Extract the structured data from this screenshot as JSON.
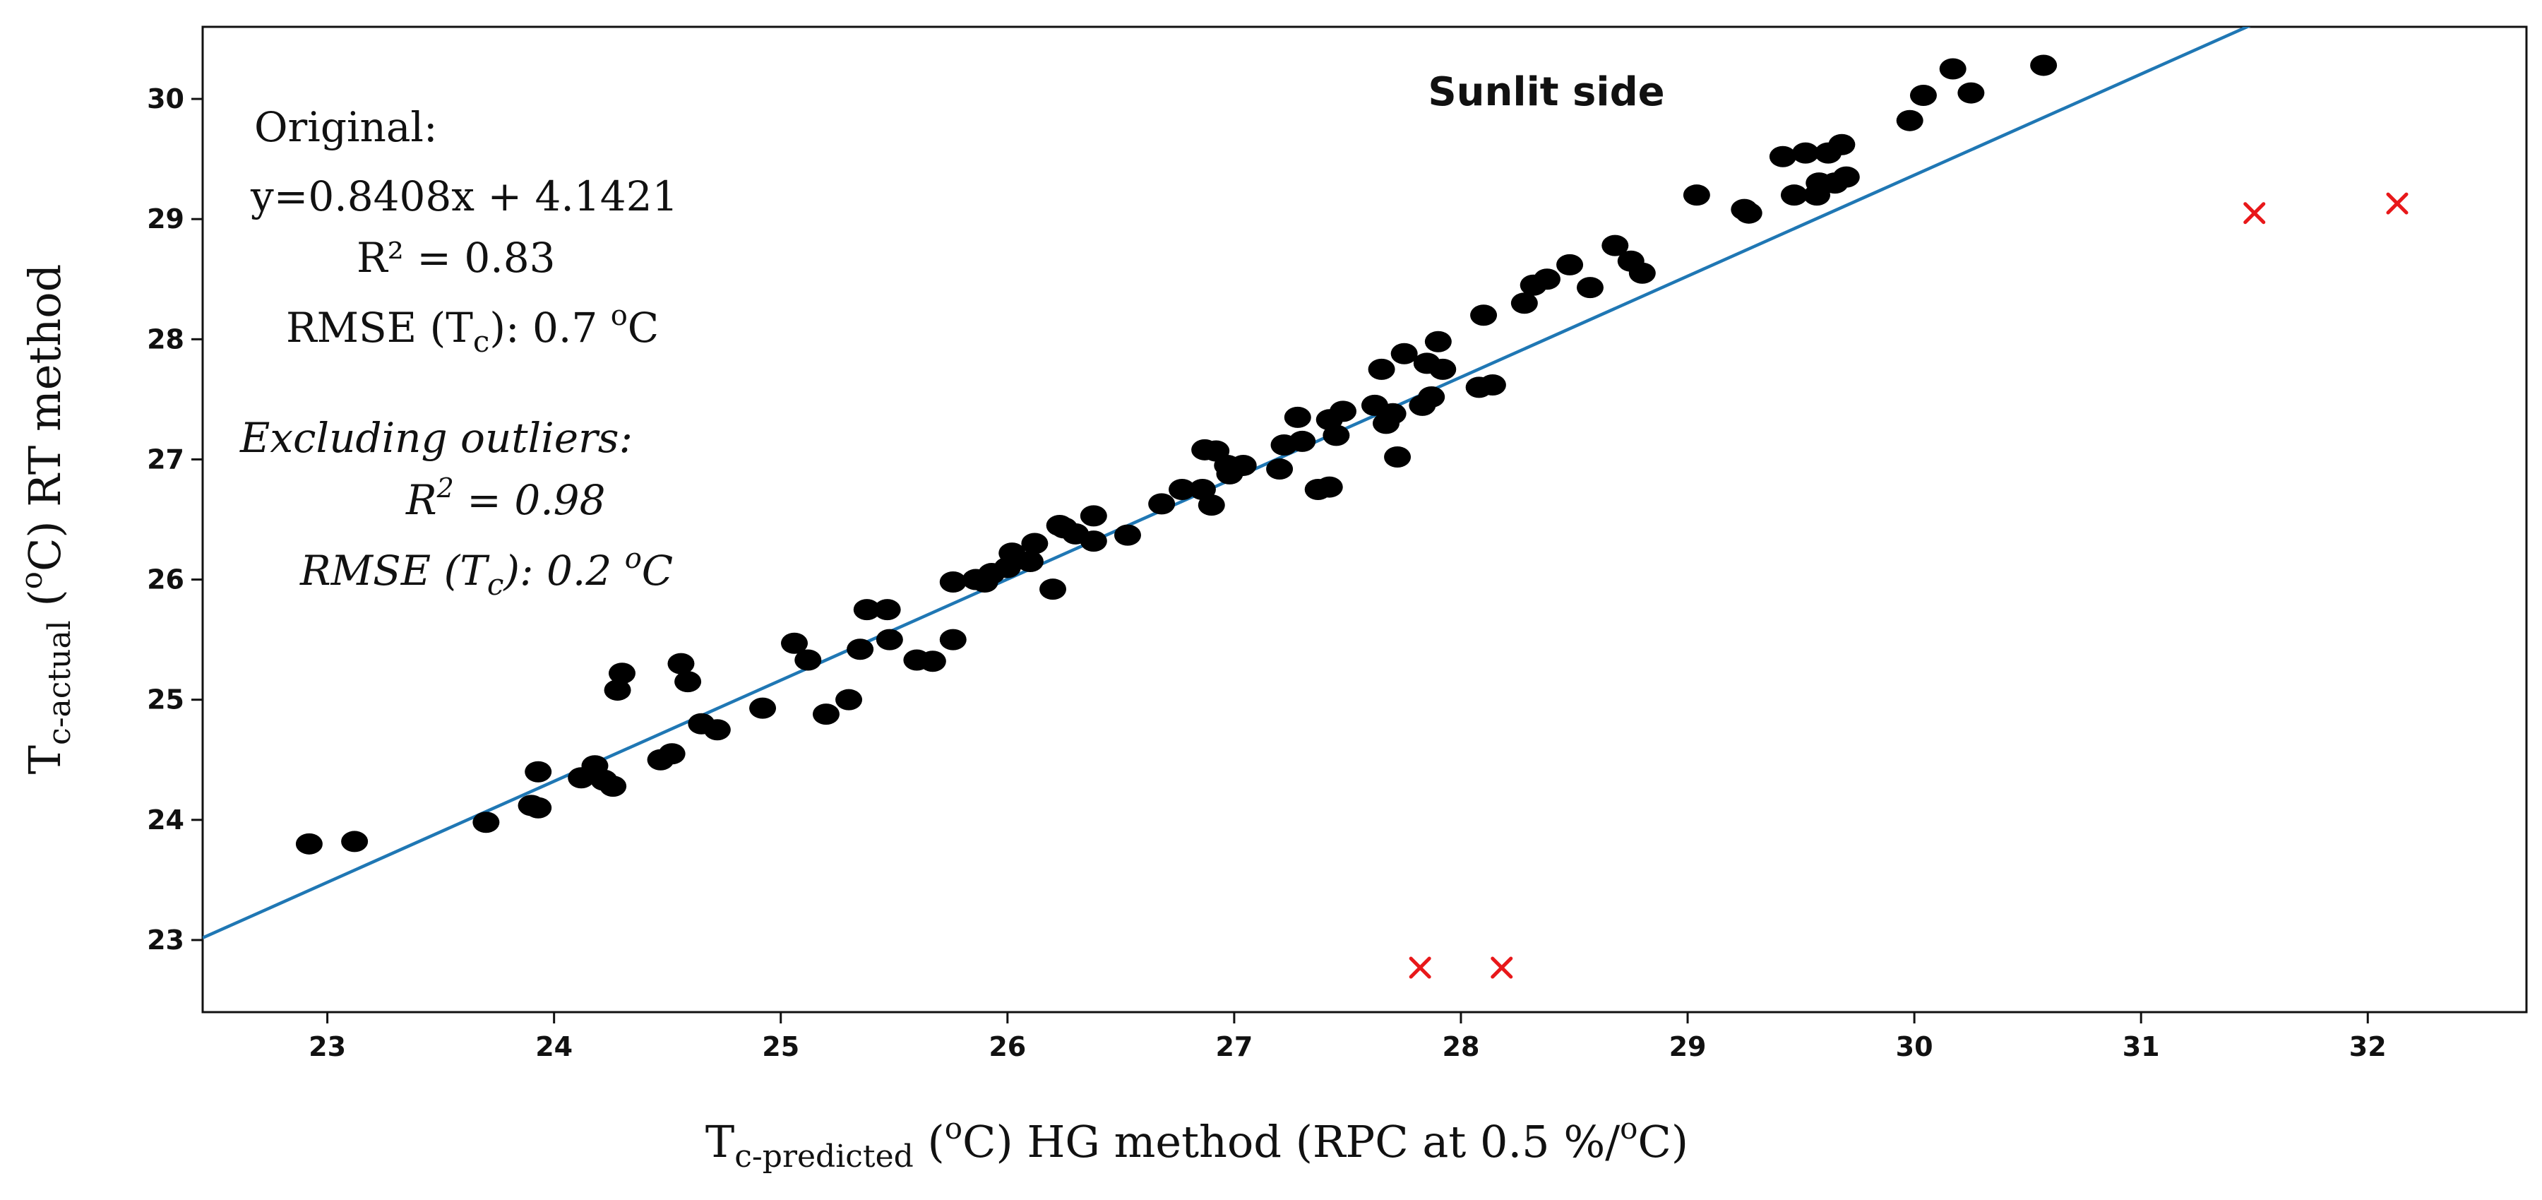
{
  "chart_data": {
    "type": "scatter",
    "title": "Sunlit side",
    "xlabel": {
      "main": "T",
      "sub": "c-predicted",
      "rest": " (",
      "sup_unit": "o",
      "tail": "C)  HG method (RPC at 0.5 %/",
      "sup_unit2": "o",
      "end": "C)"
    },
    "ylabel": {
      "main": "T",
      "sub": "c-actual",
      "rest": " (",
      "sup_unit": "o",
      "tail": "C)  RT method"
    },
    "xlim": [
      22.45,
      32.7
    ],
    "ylim": [
      22.4,
      30.6
    ],
    "xticks": [
      "23",
      "24",
      "25",
      "26",
      "27",
      "28",
      "29",
      "30",
      "31",
      "32"
    ],
    "yticks": [
      "23",
      "24",
      "25",
      "26",
      "27",
      "28",
      "29",
      "30"
    ],
    "annotations": {
      "original_label": "Original:",
      "equation": "y=0.8408x + 4.1421",
      "r2": "R² = 0.83",
      "rmse_prefix": "RMSE (T",
      "rmse_sub": "c",
      "rmse_value": "): 0.7 ",
      "rmse_sup": "o",
      "rmse_unit": "C",
      "excluding_label": "Excluding outliers:",
      "r2_excl_prefix": "R",
      "r2_excl_sup": "2",
      "r2_excl_value": " = 0.98",
      "rmse_excl_prefix": "RMSE (T",
      "rmse_excl_sub": "c",
      "rmse_excl_value": "): 0.2 ",
      "rmse_excl_sup": "o",
      "rmse_excl_unit": "C"
    },
    "fit_line": {
      "slope": 0.8408,
      "intercept": 4.1421,
      "color": "#1f77b4"
    },
    "series": [
      {
        "name": "data",
        "marker": "dot",
        "color": "#000000",
        "points": [
          [
            22.92,
            23.8
          ],
          [
            23.12,
            23.82
          ],
          [
            23.7,
            23.98
          ],
          [
            23.9,
            24.12
          ],
          [
            23.93,
            24.1
          ],
          [
            23.93,
            24.4
          ],
          [
            24.12,
            24.35
          ],
          [
            24.18,
            24.45
          ],
          [
            24.22,
            24.33
          ],
          [
            24.26,
            24.28
          ],
          [
            24.28,
            25.08
          ],
          [
            24.3,
            25.22
          ],
          [
            24.47,
            24.5
          ],
          [
            24.52,
            24.55
          ],
          [
            24.56,
            25.3
          ],
          [
            24.59,
            25.15
          ],
          [
            24.65,
            24.8
          ],
          [
            24.72,
            24.75
          ],
          [
            24.92,
            24.93
          ],
          [
            25.06,
            25.47
          ],
          [
            25.12,
            25.33
          ],
          [
            25.2,
            24.88
          ],
          [
            25.3,
            25.0
          ],
          [
            25.35,
            25.42
          ],
          [
            25.38,
            25.75
          ],
          [
            25.47,
            25.75
          ],
          [
            25.48,
            25.5
          ],
          [
            25.6,
            25.33
          ],
          [
            25.67,
            25.32
          ],
          [
            25.76,
            25.5
          ],
          [
            25.76,
            25.98
          ],
          [
            25.86,
            26.0
          ],
          [
            25.9,
            25.98
          ],
          [
            25.93,
            26.05
          ],
          [
            26.0,
            26.1
          ],
          [
            26.02,
            26.22
          ],
          [
            26.1,
            26.15
          ],
          [
            26.12,
            26.3
          ],
          [
            26.2,
            25.92
          ],
          [
            26.23,
            26.45
          ],
          [
            26.25,
            26.43
          ],
          [
            26.3,
            26.38
          ],
          [
            26.38,
            26.32
          ],
          [
            26.38,
            26.53
          ],
          [
            26.53,
            26.37
          ],
          [
            26.68,
            26.63
          ],
          [
            26.77,
            26.75
          ],
          [
            26.86,
            26.75
          ],
          [
            26.87,
            27.08
          ],
          [
            26.9,
            26.62
          ],
          [
            26.92,
            27.07
          ],
          [
            26.97,
            26.95
          ],
          [
            26.98,
            26.88
          ],
          [
            27.04,
            26.95
          ],
          [
            27.2,
            26.92
          ],
          [
            27.22,
            27.12
          ],
          [
            27.28,
            27.35
          ],
          [
            27.3,
            27.15
          ],
          [
            27.37,
            26.75
          ],
          [
            27.42,
            26.77
          ],
          [
            27.42,
            27.33
          ],
          [
            27.45,
            27.2
          ],
          [
            27.48,
            27.4
          ],
          [
            27.62,
            27.45
          ],
          [
            27.65,
            27.75
          ],
          [
            27.67,
            27.3
          ],
          [
            27.7,
            27.38
          ],
          [
            27.72,
            27.02
          ],
          [
            27.75,
            27.88
          ],
          [
            27.83,
            27.45
          ],
          [
            27.85,
            27.8
          ],
          [
            27.87,
            27.52
          ],
          [
            27.9,
            27.98
          ],
          [
            27.92,
            27.75
          ],
          [
            28.08,
            27.6
          ],
          [
            28.1,
            28.2
          ],
          [
            28.14,
            27.62
          ],
          [
            28.28,
            28.3
          ],
          [
            28.32,
            28.45
          ],
          [
            28.38,
            28.5
          ],
          [
            28.48,
            28.62
          ],
          [
            28.57,
            28.43
          ],
          [
            28.68,
            28.78
          ],
          [
            28.75,
            28.65
          ],
          [
            28.8,
            28.55
          ],
          [
            29.04,
            29.2
          ],
          [
            29.25,
            29.08
          ],
          [
            29.27,
            29.05
          ],
          [
            29.42,
            29.52
          ],
          [
            29.47,
            29.2
          ],
          [
            29.52,
            29.55
          ],
          [
            29.57,
            29.2
          ],
          [
            29.58,
            29.3
          ],
          [
            29.62,
            29.55
          ],
          [
            29.65,
            29.3
          ],
          [
            29.68,
            29.62
          ],
          [
            29.7,
            29.35
          ],
          [
            29.98,
            29.82
          ],
          [
            30.04,
            30.03
          ],
          [
            30.17,
            30.25
          ],
          [
            30.25,
            30.05
          ],
          [
            30.57,
            30.28
          ]
        ]
      },
      {
        "name": "outliers",
        "marker": "x",
        "color": "#e8181a",
        "points": [
          [
            27.82,
            22.77
          ],
          [
            28.18,
            22.77
          ],
          [
            31.5,
            29.05
          ],
          [
            32.13,
            29.13
          ]
        ]
      }
    ]
  }
}
